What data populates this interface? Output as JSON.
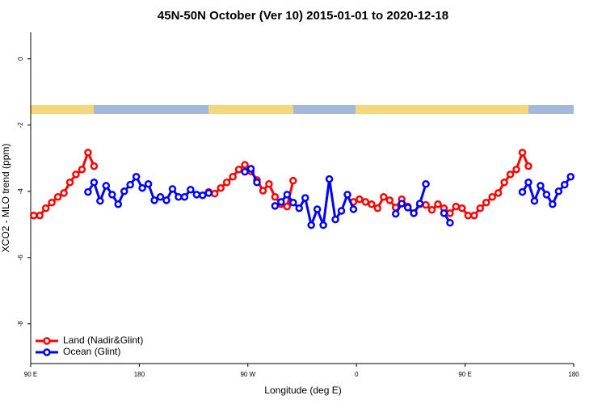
{
  "chart_data": {
    "type": "line",
    "title": "45N-50N October (Ver 10)   2015-01-01 to 2020-12-18",
    "x_label": "Longitude (deg E)",
    "y_label": "XCO2 - MLO trend (ppm)",
    "xlim": [
      90,
      540
    ],
    "ylim": [
      -9.2,
      0.8
    ],
    "xticks": [
      {
        "value": 90,
        "label": "90 E"
      },
      {
        "value": 180,
        "label": "180"
      },
      {
        "value": 270,
        "label": "90 W"
      },
      {
        "value": 360,
        "label": "0"
      },
      {
        "value": 450,
        "label": "90 E"
      },
      {
        "value": 540,
        "label": "180"
      }
    ],
    "yticks": [
      0,
      -2,
      -4,
      -6,
      -8
    ],
    "legend": "bottom-left",
    "series": [
      {
        "name": "Land (Nadir&Glint)",
        "color": "#ff0000",
        "x": [
          92.5,
          97.5,
          102.5,
          107.5,
          112.5,
          117.5,
          122.5,
          127.5,
          132.5,
          137.5,
          142.5,
          147.5,
          237.5,
          242.5,
          247.5,
          252.5,
          257.5,
          262.5,
          267.5,
          272.5,
          277.5,
          282.5,
          287.5,
          292.5,
          297.5,
          302.5,
          307.5,
          312.5,
          357.5,
          362.5,
          367.5,
          372.5,
          377.5,
          382.5,
          387.5,
          392.5,
          397.5,
          402.5,
          407.5,
          412.5,
          417.5,
          422.5,
          427.5,
          432.5,
          437.5,
          442.5,
          447.5,
          452.5,
          457.5,
          462.5,
          467.5,
          472.5,
          477.5,
          482.5,
          487.5,
          492.5,
          497.5,
          502.5
        ],
        "values": [
          -4.73,
          -4.73,
          -4.51,
          -4.34,
          -4.17,
          -4.05,
          -3.73,
          -3.49,
          -3.34,
          -2.83,
          -3.24,
          null,
          -4.02,
          -4.07,
          -3.9,
          -3.73,
          -3.56,
          -3.34,
          -3.2,
          -3.4,
          -3.66,
          -3.98,
          -3.78,
          -4.17,
          -4.39,
          -4.46,
          -3.68,
          null,
          -4.32,
          -4.24,
          -4.32,
          -4.39,
          -4.51,
          -4.17,
          -4.27,
          -4.49,
          -4.24,
          -4.46,
          -4.66,
          -4.39,
          -4.41,
          -4.56,
          -4.39,
          -4.51,
          -4.66,
          -4.46,
          -4.51,
          -4.73,
          -4.73,
          -4.51,
          -4.34,
          -4.17,
          -4.05,
          -3.73,
          -3.49,
          -3.34,
          -2.83,
          -3.24
        ]
      },
      {
        "name": "Ocean (Glint)",
        "color": "#0000ff",
        "x": [
          137.5,
          142.5,
          147.5,
          152.5,
          157.5,
          162.5,
          167.5,
          172.5,
          177.5,
          182.5,
          187.5,
          192.5,
          197.5,
          202.5,
          207.5,
          212.5,
          217.5,
          222.5,
          227.5,
          232.5,
          237.5,
          242.5,
          267.5,
          272.5,
          277.5,
          282.5,
          292.5,
          297.5,
          302.5,
          307.5,
          312.5,
          317.5,
          322.5,
          327.5,
          332.5,
          337.5,
          342.5,
          347.5,
          352.5,
          357.5,
          362.5,
          392.5,
          397.5,
          402.5,
          407.5,
          412.5,
          417.5,
          422.5,
          432.5,
          437.5,
          442.5,
          497.5,
          502.5,
          507.5,
          512.5,
          517.5,
          522.5,
          527.5,
          532.5,
          537.5
        ],
        "values": [
          -4.02,
          -3.73,
          -4.29,
          -3.83,
          -4.1,
          -4.39,
          -4.0,
          -3.8,
          -3.56,
          -3.9,
          -3.78,
          -4.27,
          -4.17,
          -4.27,
          -3.93,
          -4.17,
          -4.17,
          -3.95,
          -4.1,
          -4.12,
          -4.05,
          null,
          -3.41,
          -3.32,
          -3.73,
          null,
          -4.44,
          -4.32,
          -4.1,
          -4.34,
          -4.51,
          -4.2,
          -5.02,
          -4.54,
          -5.02,
          -3.63,
          -4.85,
          -4.59,
          -4.1,
          -4.54,
          null,
          -4.68,
          -4.37,
          -4.49,
          -4.66,
          -4.37,
          -3.78,
          null,
          -4.66,
          -4.95,
          null,
          -4.02,
          -3.73,
          -4.29,
          -3.83,
          -4.1,
          -4.39,
          -4.0,
          -3.8,
          -3.56
        ]
      }
    ]
  }
}
